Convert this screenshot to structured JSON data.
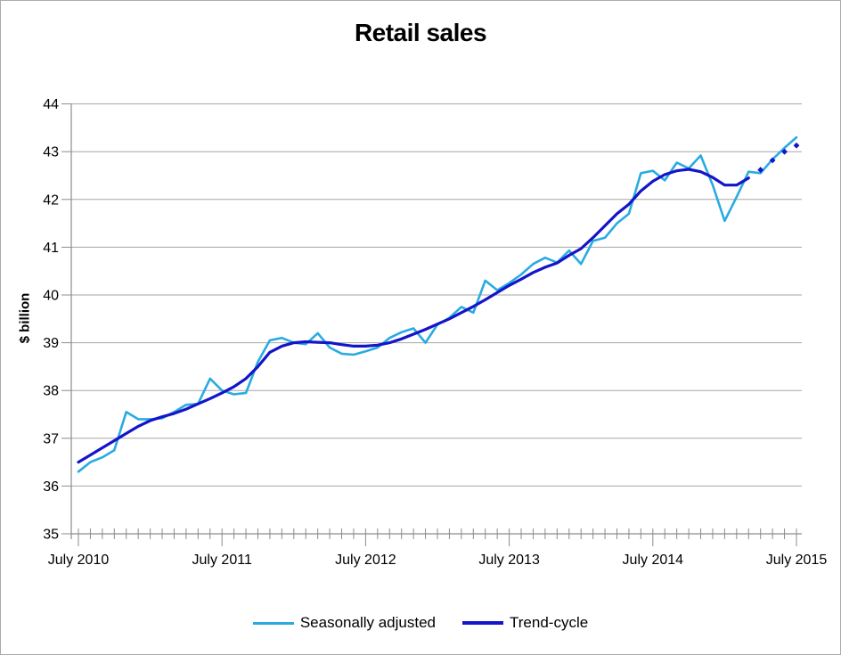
{
  "page": {
    "background": "#FFFFFF",
    "border_color": "#ABABAB"
  },
  "chart_data": {
    "type": "line",
    "title": "Retail sales",
    "xlabel": "",
    "ylabel": "$ billion",
    "ylim": [
      35,
      44
    ],
    "y_ticks": [
      35,
      36,
      37,
      38,
      39,
      40,
      41,
      42,
      43,
      44
    ],
    "months_total": 61,
    "x_range": [
      "July 2010",
      "July 2015"
    ],
    "x_tick_labels": [
      "July 2010",
      "July 2011",
      "July 2012",
      "July 2013",
      "July 2014",
      "July 2015"
    ],
    "x_major_tick_months": [
      0,
      12,
      24,
      36,
      48,
      60
    ],
    "grid": "horizontal-only",
    "legend_position": "bottom-center",
    "gridline_color": "#A6A6A6",
    "axis_color": "#8C8C8C",
    "series": [
      {
        "name": "Seasonally adjusted",
        "color": "#29ABE2",
        "style": "solid",
        "values": [
          36.3,
          36.5,
          36.6,
          36.75,
          37.55,
          37.4,
          37.4,
          37.42,
          37.55,
          37.7,
          37.72,
          38.25,
          38.0,
          37.92,
          37.95,
          38.6,
          39.05,
          39.1,
          39.0,
          38.97,
          39.2,
          38.9,
          38.77,
          38.75,
          38.82,
          38.9,
          39.1,
          39.22,
          39.3,
          39.0,
          39.38,
          39.52,
          39.75,
          39.63,
          40.3,
          40.1,
          40.25,
          40.43,
          40.65,
          40.78,
          40.68,
          40.93,
          40.65,
          41.13,
          41.2,
          41.5,
          41.7,
          42.55,
          42.6,
          42.4,
          42.77,
          42.65,
          42.92,
          42.3,
          41.55,
          42.05,
          42.58,
          42.55,
          42.84,
          43.08,
          43.3
        ]
      },
      {
        "name": "Trend-cycle",
        "color": "#1414C8",
        "style": "solid-with-dotted-tail",
        "values": [
          36.5,
          36.65,
          36.8,
          36.95,
          37.1,
          37.25,
          37.37,
          37.45,
          37.52,
          37.61,
          37.72,
          37.83,
          37.95,
          38.08,
          38.25,
          38.5,
          38.8,
          38.93,
          39.0,
          39.02,
          39.01,
          39.0,
          38.96,
          38.93,
          38.93,
          38.95,
          39.0,
          39.08,
          39.18,
          39.28,
          39.39,
          39.5,
          39.63,
          39.76,
          39.9,
          40.05,
          40.2,
          40.33,
          40.47,
          40.58,
          40.67,
          40.83,
          40.97,
          41.2,
          41.45,
          41.7,
          41.9,
          42.18,
          42.38,
          42.52,
          42.6,
          42.63,
          42.58,
          42.46,
          42.3,
          42.3,
          42.45
        ],
        "dotted_tail": {
          "start_month": 57,
          "marker": "diamond",
          "values": [
            42.62,
            42.82,
            43.0,
            43.13
          ]
        }
      }
    ]
  }
}
